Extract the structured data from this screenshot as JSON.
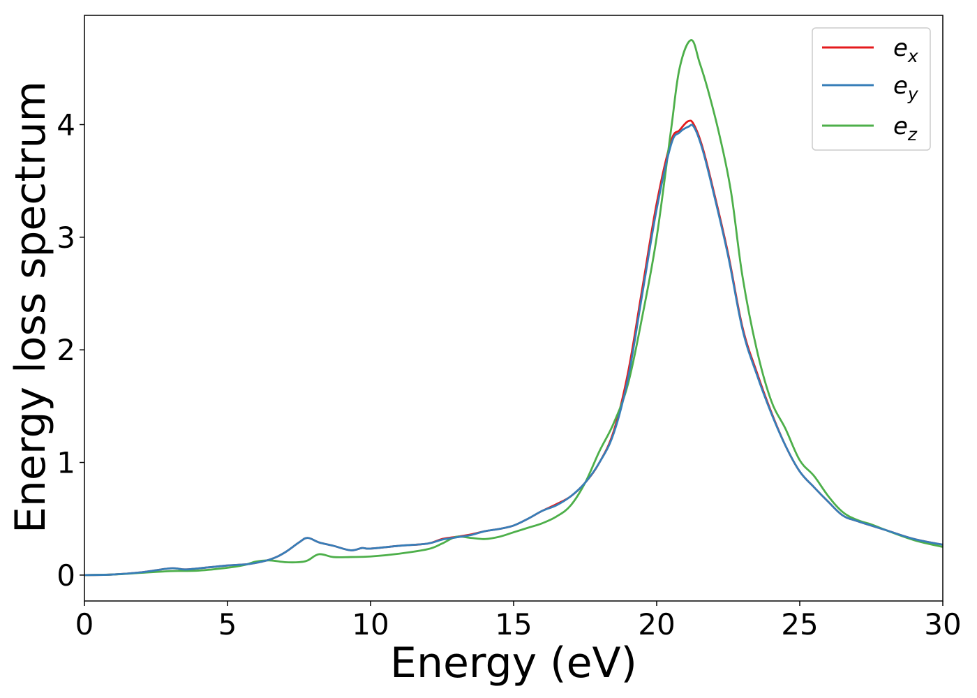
{
  "chart_data": {
    "type": "line",
    "title": "",
    "xlabel": "Energy (eV)",
    "ylabel": "Energy loss spectrum",
    "xlim": [
      0,
      30
    ],
    "ylim": [
      -0.23,
      4.97
    ],
    "x_ticks": [
      0,
      5,
      10,
      15,
      20,
      25,
      30
    ],
    "y_ticks": [
      0,
      1,
      2,
      3,
      4
    ],
    "grid": false,
    "legend_position": "top-right",
    "series": [
      {
        "name": "e_x",
        "label_base": "e",
        "label_sub": "x",
        "color": "#e41a1c",
        "points": [
          [
            0,
            0
          ],
          [
            1,
            0.005
          ],
          [
            2,
            0.025
          ],
          [
            3,
            0.06
          ],
          [
            3.5,
            0.05
          ],
          [
            4,
            0.06
          ],
          [
            5,
            0.085
          ],
          [
            5.8,
            0.1
          ],
          [
            6.5,
            0.14
          ],
          [
            7,
            0.2
          ],
          [
            7.5,
            0.29
          ],
          [
            7.8,
            0.33
          ],
          [
            8.2,
            0.29
          ],
          [
            8.7,
            0.26
          ],
          [
            9.3,
            0.22
          ],
          [
            9.7,
            0.24
          ],
          [
            10,
            0.235
          ],
          [
            11,
            0.26
          ],
          [
            12,
            0.28
          ],
          [
            12.5,
            0.32
          ],
          [
            13,
            0.34
          ],
          [
            13.5,
            0.36
          ],
          [
            14,
            0.39
          ],
          [
            14.5,
            0.41
          ],
          [
            15,
            0.44
          ],
          [
            15.5,
            0.5
          ],
          [
            16,
            0.57
          ],
          [
            16.5,
            0.63
          ],
          [
            17,
            0.7
          ],
          [
            17.5,
            0.82
          ],
          [
            18,
            1.0
          ],
          [
            18.5,
            1.28
          ],
          [
            19,
            1.8
          ],
          [
            19.5,
            2.55
          ],
          [
            20,
            3.3
          ],
          [
            20.5,
            3.85
          ],
          [
            20.8,
            3.95
          ],
          [
            21.1,
            4.03
          ],
          [
            21.3,
            4.0
          ],
          [
            21.6,
            3.8
          ],
          [
            22,
            3.4
          ],
          [
            22.5,
            2.85
          ],
          [
            23,
            2.2
          ],
          [
            23.5,
            1.8
          ],
          [
            24,
            1.45
          ],
          [
            24.5,
            1.15
          ],
          [
            25,
            0.92
          ],
          [
            25.5,
            0.78
          ],
          [
            26,
            0.65
          ],
          [
            26.5,
            0.53
          ],
          [
            27,
            0.48
          ],
          [
            28,
            0.4
          ],
          [
            29,
            0.32
          ],
          [
            30,
            0.27
          ]
        ]
      },
      {
        "name": "e_y",
        "label_base": "e",
        "label_sub": "y",
        "color": "#377eb8",
        "points": [
          [
            0,
            0
          ],
          [
            1,
            0.005
          ],
          [
            2,
            0.025
          ],
          [
            3,
            0.06
          ],
          [
            3.5,
            0.05
          ],
          [
            4,
            0.06
          ],
          [
            5,
            0.085
          ],
          [
            5.8,
            0.1
          ],
          [
            6.5,
            0.14
          ],
          [
            7,
            0.2
          ],
          [
            7.5,
            0.29
          ],
          [
            7.8,
            0.33
          ],
          [
            8.2,
            0.29
          ],
          [
            8.7,
            0.26
          ],
          [
            9.3,
            0.22
          ],
          [
            9.7,
            0.24
          ],
          [
            10,
            0.235
          ],
          [
            11,
            0.26
          ],
          [
            12,
            0.28
          ],
          [
            12.5,
            0.315
          ],
          [
            13,
            0.335
          ],
          [
            13.5,
            0.355
          ],
          [
            14,
            0.39
          ],
          [
            14.5,
            0.41
          ],
          [
            15,
            0.44
          ],
          [
            15.5,
            0.5
          ],
          [
            16,
            0.57
          ],
          [
            16.5,
            0.62
          ],
          [
            17,
            0.7
          ],
          [
            17.5,
            0.82
          ],
          [
            18,
            1.0
          ],
          [
            18.5,
            1.26
          ],
          [
            19,
            1.75
          ],
          [
            19.5,
            2.5
          ],
          [
            20,
            3.25
          ],
          [
            20.5,
            3.82
          ],
          [
            20.8,
            3.93
          ],
          [
            21.1,
            3.98
          ],
          [
            21.3,
            3.98
          ],
          [
            21.6,
            3.78
          ],
          [
            22,
            3.38
          ],
          [
            22.5,
            2.83
          ],
          [
            23,
            2.18
          ],
          [
            23.5,
            1.78
          ],
          [
            24,
            1.44
          ],
          [
            24.5,
            1.15
          ],
          [
            25,
            0.92
          ],
          [
            25.5,
            0.78
          ],
          [
            26,
            0.65
          ],
          [
            26.5,
            0.53
          ],
          [
            27,
            0.48
          ],
          [
            28,
            0.4
          ],
          [
            29,
            0.32
          ],
          [
            30,
            0.27
          ]
        ]
      },
      {
        "name": "e_z",
        "label_base": "e",
        "label_sub": "z",
        "color": "#4daf4a",
        "points": [
          [
            0,
            0
          ],
          [
            1,
            0.005
          ],
          [
            2,
            0.02
          ],
          [
            3,
            0.035
          ],
          [
            4,
            0.04
          ],
          [
            5,
            0.065
          ],
          [
            5.6,
            0.09
          ],
          [
            6,
            0.12
          ],
          [
            6.5,
            0.13
          ],
          [
            7,
            0.115
          ],
          [
            7.5,
            0.115
          ],
          [
            7.8,
            0.13
          ],
          [
            8.2,
            0.185
          ],
          [
            8.7,
            0.16
          ],
          [
            9.3,
            0.16
          ],
          [
            10,
            0.165
          ],
          [
            11,
            0.19
          ],
          [
            12,
            0.23
          ],
          [
            12.5,
            0.28
          ],
          [
            13,
            0.34
          ],
          [
            13.5,
            0.33
          ],
          [
            14,
            0.32
          ],
          [
            14.5,
            0.34
          ],
          [
            15,
            0.38
          ],
          [
            15.5,
            0.42
          ],
          [
            16,
            0.46
          ],
          [
            16.5,
            0.52
          ],
          [
            17,
            0.62
          ],
          [
            17.5,
            0.82
          ],
          [
            18,
            1.1
          ],
          [
            18.5,
            1.35
          ],
          [
            19,
            1.7
          ],
          [
            19.5,
            2.3
          ],
          [
            20,
            3.0
          ],
          [
            20.5,
            3.95
          ],
          [
            20.8,
            4.5
          ],
          [
            21.2,
            4.75
          ],
          [
            21.5,
            4.55
          ],
          [
            21.8,
            4.3
          ],
          [
            22.2,
            3.9
          ],
          [
            22.6,
            3.4
          ],
          [
            23,
            2.65
          ],
          [
            23.5,
            2.0
          ],
          [
            24,
            1.55
          ],
          [
            24.5,
            1.3
          ],
          [
            25,
            1.02
          ],
          [
            25.5,
            0.88
          ],
          [
            26,
            0.7
          ],
          [
            26.5,
            0.56
          ],
          [
            27,
            0.49
          ],
          [
            27.5,
            0.45
          ],
          [
            28,
            0.4
          ],
          [
            29,
            0.31
          ],
          [
            30,
            0.25
          ]
        ]
      }
    ]
  }
}
